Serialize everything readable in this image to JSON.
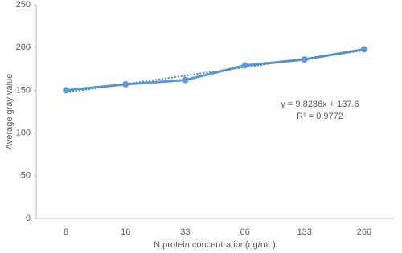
{
  "chart_data": {
    "type": "line",
    "x_label": "N protein concentration(ng/mL)",
    "y_label": "Average gray  value",
    "categories": [
      "8",
      "16",
      "33",
      "66",
      "133",
      "266"
    ],
    "series": [
      {
        "color": "#5b9bd5",
        "values": [
          150,
          157,
          162,
          179,
          186,
          198
        ]
      }
    ],
    "trendline": {
      "slope": 9.8286,
      "intercept": 137.6,
      "color": "#4a7fb8"
    },
    "annotations": [
      "y = 9.8286x + 137.6",
      "R² = 0.9772"
    ],
    "ylim": [
      0,
      250
    ],
    "yticks": [
      0,
      50,
      100,
      150,
      200,
      250
    ],
    "grid": false
  }
}
